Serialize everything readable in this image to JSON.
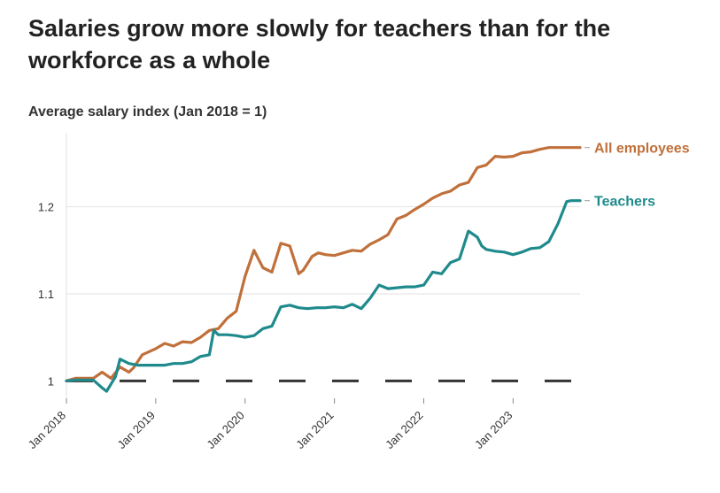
{
  "chart_data": {
    "type": "line",
    "title": "Salaries grow more slowly for teachers than for the workforce as a whole",
    "ylabel": "Average salary index (Jan 2018 = 1)",
    "xlabel": "",
    "ylim": [
      0.98,
      1.285
    ],
    "yticks": [
      1,
      1.1,
      1.2
    ],
    "ytick_labels": [
      "1",
      "1.1",
      "1.2"
    ],
    "xlim": [
      2018.0,
      2023.75
    ],
    "xticks": [
      2018,
      2019,
      2020,
      2021,
      2022,
      2023
    ],
    "xtick_labels": [
      "Jan 2018",
      "Jan 2019",
      "Jan 2020",
      "Jan 2021",
      "Jan 2022",
      "Jan 2023"
    ],
    "grid": "horizontal",
    "legend": "direct labels at line ends",
    "reference_line": {
      "y": 1,
      "style": "dashed"
    },
    "series": [
      {
        "name": "All employees",
        "color": "#c0703a",
        "x": [
          2018.0,
          2018.1,
          2018.2,
          2018.3,
          2018.4,
          2018.5,
          2018.6,
          2018.7,
          2018.75,
          2018.85,
          2019.0,
          2019.1,
          2019.2,
          2019.3,
          2019.4,
          2019.5,
          2019.6,
          2019.7,
          2019.8,
          2019.9,
          2020.0,
          2020.1,
          2020.2,
          2020.3,
          2020.4,
          2020.5,
          2020.6,
          2020.65,
          2020.75,
          2020.82,
          2020.9,
          2021.0,
          2021.1,
          2021.2,
          2021.3,
          2021.4,
          2021.5,
          2021.6,
          2021.7,
          2021.8,
          2021.9,
          2022.0,
          2022.1,
          2022.2,
          2022.3,
          2022.4,
          2022.5,
          2022.6,
          2022.7,
          2022.8,
          2022.9,
          2023.0,
          2023.1,
          2023.2,
          2023.3,
          2023.4,
          2023.5,
          2023.6,
          2023.7,
          2023.75
        ],
        "values": [
          1.0,
          1.003,
          1.003,
          1.003,
          1.01,
          1.003,
          1.016,
          1.01,
          1.015,
          1.03,
          1.037,
          1.043,
          1.04,
          1.045,
          1.044,
          1.05,
          1.058,
          1.06,
          1.072,
          1.08,
          1.12,
          1.15,
          1.13,
          1.125,
          1.158,
          1.155,
          1.123,
          1.127,
          1.143,
          1.147,
          1.145,
          1.144,
          1.147,
          1.15,
          1.149,
          1.157,
          1.162,
          1.168,
          1.186,
          1.19,
          1.197,
          1.203,
          1.21,
          1.215,
          1.218,
          1.225,
          1.228,
          1.245,
          1.248,
          1.258,
          1.257,
          1.258,
          1.262,
          1.263,
          1.266,
          1.268,
          1.268,
          1.268,
          1.268,
          1.268
        ],
        "label": "All employees"
      },
      {
        "name": "Teachers",
        "color": "#1f8a8c",
        "x": [
          2018.0,
          2018.1,
          2018.2,
          2018.3,
          2018.4,
          2018.45,
          2018.55,
          2018.6,
          2018.7,
          2018.8,
          2018.9,
          2019.0,
          2019.1,
          2019.2,
          2019.3,
          2019.4,
          2019.5,
          2019.6,
          2019.65,
          2019.7,
          2019.8,
          2019.9,
          2020.0,
          2020.1,
          2020.2,
          2020.3,
          2020.4,
          2020.5,
          2020.6,
          2020.7,
          2020.8,
          2020.9,
          2021.0,
          2021.1,
          2021.2,
          2021.3,
          2021.4,
          2021.5,
          2021.6,
          2021.7,
          2021.8,
          2021.9,
          2022.0,
          2022.1,
          2022.2,
          2022.3,
          2022.4,
          2022.5,
          2022.6,
          2022.65,
          2022.7,
          2022.8,
          2022.9,
          2023.0,
          2023.1,
          2023.2,
          2023.3,
          2023.4,
          2023.5,
          2023.6,
          2023.65,
          2023.75
        ],
        "values": [
          1.0,
          1.001,
          1.001,
          1.001,
          0.992,
          0.988,
          1.005,
          1.025,
          1.02,
          1.018,
          1.018,
          1.018,
          1.018,
          1.02,
          1.02,
          1.022,
          1.028,
          1.03,
          1.058,
          1.053,
          1.053,
          1.052,
          1.05,
          1.052,
          1.06,
          1.063,
          1.085,
          1.087,
          1.084,
          1.083,
          1.084,
          1.084,
          1.085,
          1.084,
          1.088,
          1.083,
          1.095,
          1.11,
          1.106,
          1.107,
          1.108,
          1.108,
          1.11,
          1.125,
          1.123,
          1.136,
          1.14,
          1.172,
          1.165,
          1.155,
          1.151,
          1.149,
          1.148,
          1.145,
          1.148,
          1.152,
          1.153,
          1.16,
          1.18,
          1.206,
          1.207,
          1.207
        ],
        "label": "Teachers"
      }
    ]
  }
}
